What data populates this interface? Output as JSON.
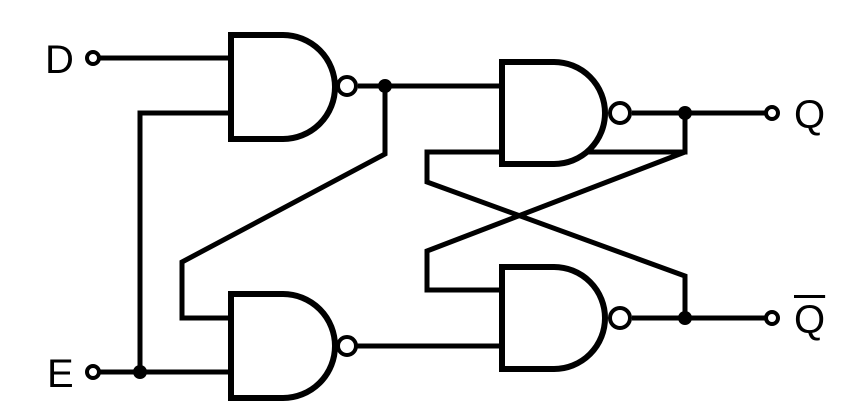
{
  "labels": {
    "d": "D",
    "e": "E",
    "q": "Q",
    "qbar": "Q"
  }
}
